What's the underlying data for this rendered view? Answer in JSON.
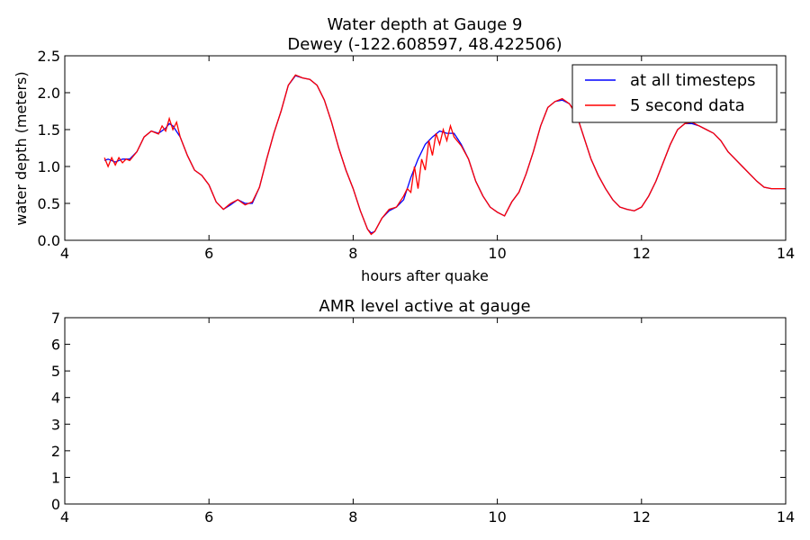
{
  "chart_data": [
    {
      "type": "line",
      "title_line1": "Water depth at Gauge 9",
      "title_line2": "Dewey  (-122.608597, 48.422506)",
      "xlabel": "hours after quake",
      "ylabel": "water depth (meters)",
      "xlim": [
        4,
        14
      ],
      "ylim": [
        0,
        2.5
      ],
      "xticks": [
        "4",
        "6",
        "8",
        "10",
        "12",
        "14"
      ],
      "yticks": [
        "0.0",
        "0.5",
        "1.0",
        "1.5",
        "2.0",
        "2.5"
      ],
      "grid": false,
      "legend_position": "top-right",
      "series": [
        {
          "name": "at all timesteps",
          "color": "#0000ff",
          "x": [
            4.55,
            4.6,
            4.7,
            4.8,
            4.9,
            5.0,
            5.1,
            5.2,
            5.3,
            5.4,
            5.45,
            5.5,
            5.6,
            5.7,
            5.8,
            5.9,
            6.0,
            6.1,
            6.2,
            6.3,
            6.4,
            6.5,
            6.6,
            6.7,
            6.8,
            6.9,
            7.0,
            7.1,
            7.2,
            7.3,
            7.4,
            7.5,
            7.6,
            7.7,
            7.8,
            7.9,
            8.0,
            8.1,
            8.2,
            8.25,
            8.3,
            8.4,
            8.5,
            8.6,
            8.7,
            8.8,
            8.9,
            9.0,
            9.1,
            9.2,
            9.3,
            9.4,
            9.5,
            9.6,
            9.7,
            9.8,
            9.9,
            10.0,
            10.1,
            10.2,
            10.3,
            10.4,
            10.5,
            10.6,
            10.7,
            10.8,
            10.9,
            11.0,
            11.1,
            11.2,
            11.3,
            11.4,
            11.5,
            11.6,
            11.7,
            11.8,
            11.9,
            12.0,
            12.1,
            12.2,
            12.3,
            12.4,
            12.5,
            12.6,
            12.7,
            12.8,
            12.9,
            13.0,
            13.1,
            13.2,
            13.3,
            13.4,
            13.5,
            13.6,
            13.7,
            13.8,
            13.9,
            14.0
          ],
          "values": [
            1.08,
            1.1,
            1.06,
            1.1,
            1.1,
            1.2,
            1.4,
            1.48,
            1.45,
            1.52,
            1.58,
            1.55,
            1.4,
            1.15,
            0.95,
            0.88,
            0.75,
            0.52,
            0.42,
            0.48,
            0.55,
            0.5,
            0.5,
            0.72,
            1.1,
            1.45,
            1.75,
            2.1,
            2.23,
            2.2,
            2.18,
            2.1,
            1.9,
            1.6,
            1.25,
            0.95,
            0.7,
            0.4,
            0.15,
            0.1,
            0.12,
            0.3,
            0.4,
            0.45,
            0.55,
            0.85,
            1.1,
            1.3,
            1.4,
            1.48,
            1.45,
            1.45,
            1.3,
            1.1,
            0.8,
            0.6,
            0.45,
            0.38,
            0.33,
            0.52,
            0.65,
            0.9,
            1.2,
            1.55,
            1.8,
            1.88,
            1.9,
            1.85,
            1.7,
            1.4,
            1.1,
            0.88,
            0.7,
            0.55,
            0.45,
            0.42,
            0.4,
            0.45,
            0.6,
            0.8,
            1.05,
            1.3,
            1.5,
            1.58,
            1.58,
            1.55,
            1.5,
            1.45,
            1.35,
            1.2,
            1.1,
            1.0,
            0.9,
            0.8,
            0.72,
            0.7,
            0.7,
            0.7
          ]
        },
        {
          "name": "5 second data",
          "color": "#ff0000",
          "x": [
            4.55,
            4.6,
            4.65,
            4.7,
            4.75,
            4.8,
            4.85,
            4.9,
            5.0,
            5.1,
            5.2,
            5.3,
            5.35,
            5.4,
            5.45,
            5.5,
            5.55,
            5.6,
            5.7,
            5.8,
            5.9,
            6.0,
            6.1,
            6.2,
            6.3,
            6.4,
            6.5,
            6.6,
            6.7,
            6.8,
            6.9,
            7.0,
            7.1,
            7.2,
            7.3,
            7.4,
            7.5,
            7.6,
            7.7,
            7.8,
            7.9,
            8.0,
            8.1,
            8.2,
            8.25,
            8.3,
            8.4,
            8.5,
            8.6,
            8.7,
            8.75,
            8.8,
            8.85,
            8.9,
            8.95,
            9.0,
            9.05,
            9.1,
            9.15,
            9.2,
            9.25,
            9.3,
            9.35,
            9.4,
            9.5,
            9.6,
            9.7,
            9.8,
            9.9,
            10.0,
            10.1,
            10.2,
            10.3,
            10.4,
            10.5,
            10.6,
            10.7,
            10.8,
            10.9,
            11.0,
            11.1,
            11.2,
            11.3,
            11.4,
            11.5,
            11.6,
            11.7,
            11.8,
            11.9,
            12.0,
            12.1,
            12.2,
            12.3,
            12.4,
            12.5,
            12.6,
            12.7,
            12.8,
            12.9,
            13.0,
            13.1,
            13.2,
            13.3,
            13.4,
            13.5,
            13.6,
            13.7,
            13.8,
            13.9,
            14.0
          ],
          "values": [
            1.12,
            1.0,
            1.12,
            1.02,
            1.12,
            1.05,
            1.1,
            1.08,
            1.2,
            1.4,
            1.48,
            1.44,
            1.55,
            1.48,
            1.65,
            1.5,
            1.6,
            1.4,
            1.15,
            0.95,
            0.88,
            0.75,
            0.52,
            0.42,
            0.5,
            0.55,
            0.48,
            0.52,
            0.72,
            1.1,
            1.45,
            1.75,
            2.1,
            2.24,
            2.2,
            2.18,
            2.1,
            1.9,
            1.6,
            1.25,
            0.95,
            0.7,
            0.4,
            0.15,
            0.08,
            0.12,
            0.3,
            0.42,
            0.45,
            0.6,
            0.7,
            0.65,
            1.0,
            0.7,
            1.1,
            0.95,
            1.35,
            1.15,
            1.45,
            1.3,
            1.5,
            1.35,
            1.55,
            1.4,
            1.28,
            1.1,
            0.8,
            0.6,
            0.45,
            0.38,
            0.33,
            0.52,
            0.65,
            0.9,
            1.2,
            1.55,
            1.8,
            1.88,
            1.92,
            1.85,
            1.7,
            1.4,
            1.1,
            0.88,
            0.7,
            0.55,
            0.45,
            0.42,
            0.4,
            0.45,
            0.6,
            0.8,
            1.05,
            1.3,
            1.5,
            1.58,
            1.6,
            1.55,
            1.5,
            1.45,
            1.35,
            1.2,
            1.1,
            1.0,
            0.9,
            0.8,
            0.72,
            0.7,
            0.7,
            0.7
          ]
        }
      ]
    },
    {
      "type": "line",
      "title": "AMR level active at gauge",
      "xlim": [
        4,
        14
      ],
      "ylim": [
        0,
        7
      ],
      "xticks": [
        "4",
        "6",
        "8",
        "10",
        "12",
        "14"
      ],
      "yticks": [
        "0",
        "1",
        "2",
        "3",
        "4",
        "5",
        "6",
        "7"
      ],
      "grid": false,
      "series": []
    }
  ]
}
